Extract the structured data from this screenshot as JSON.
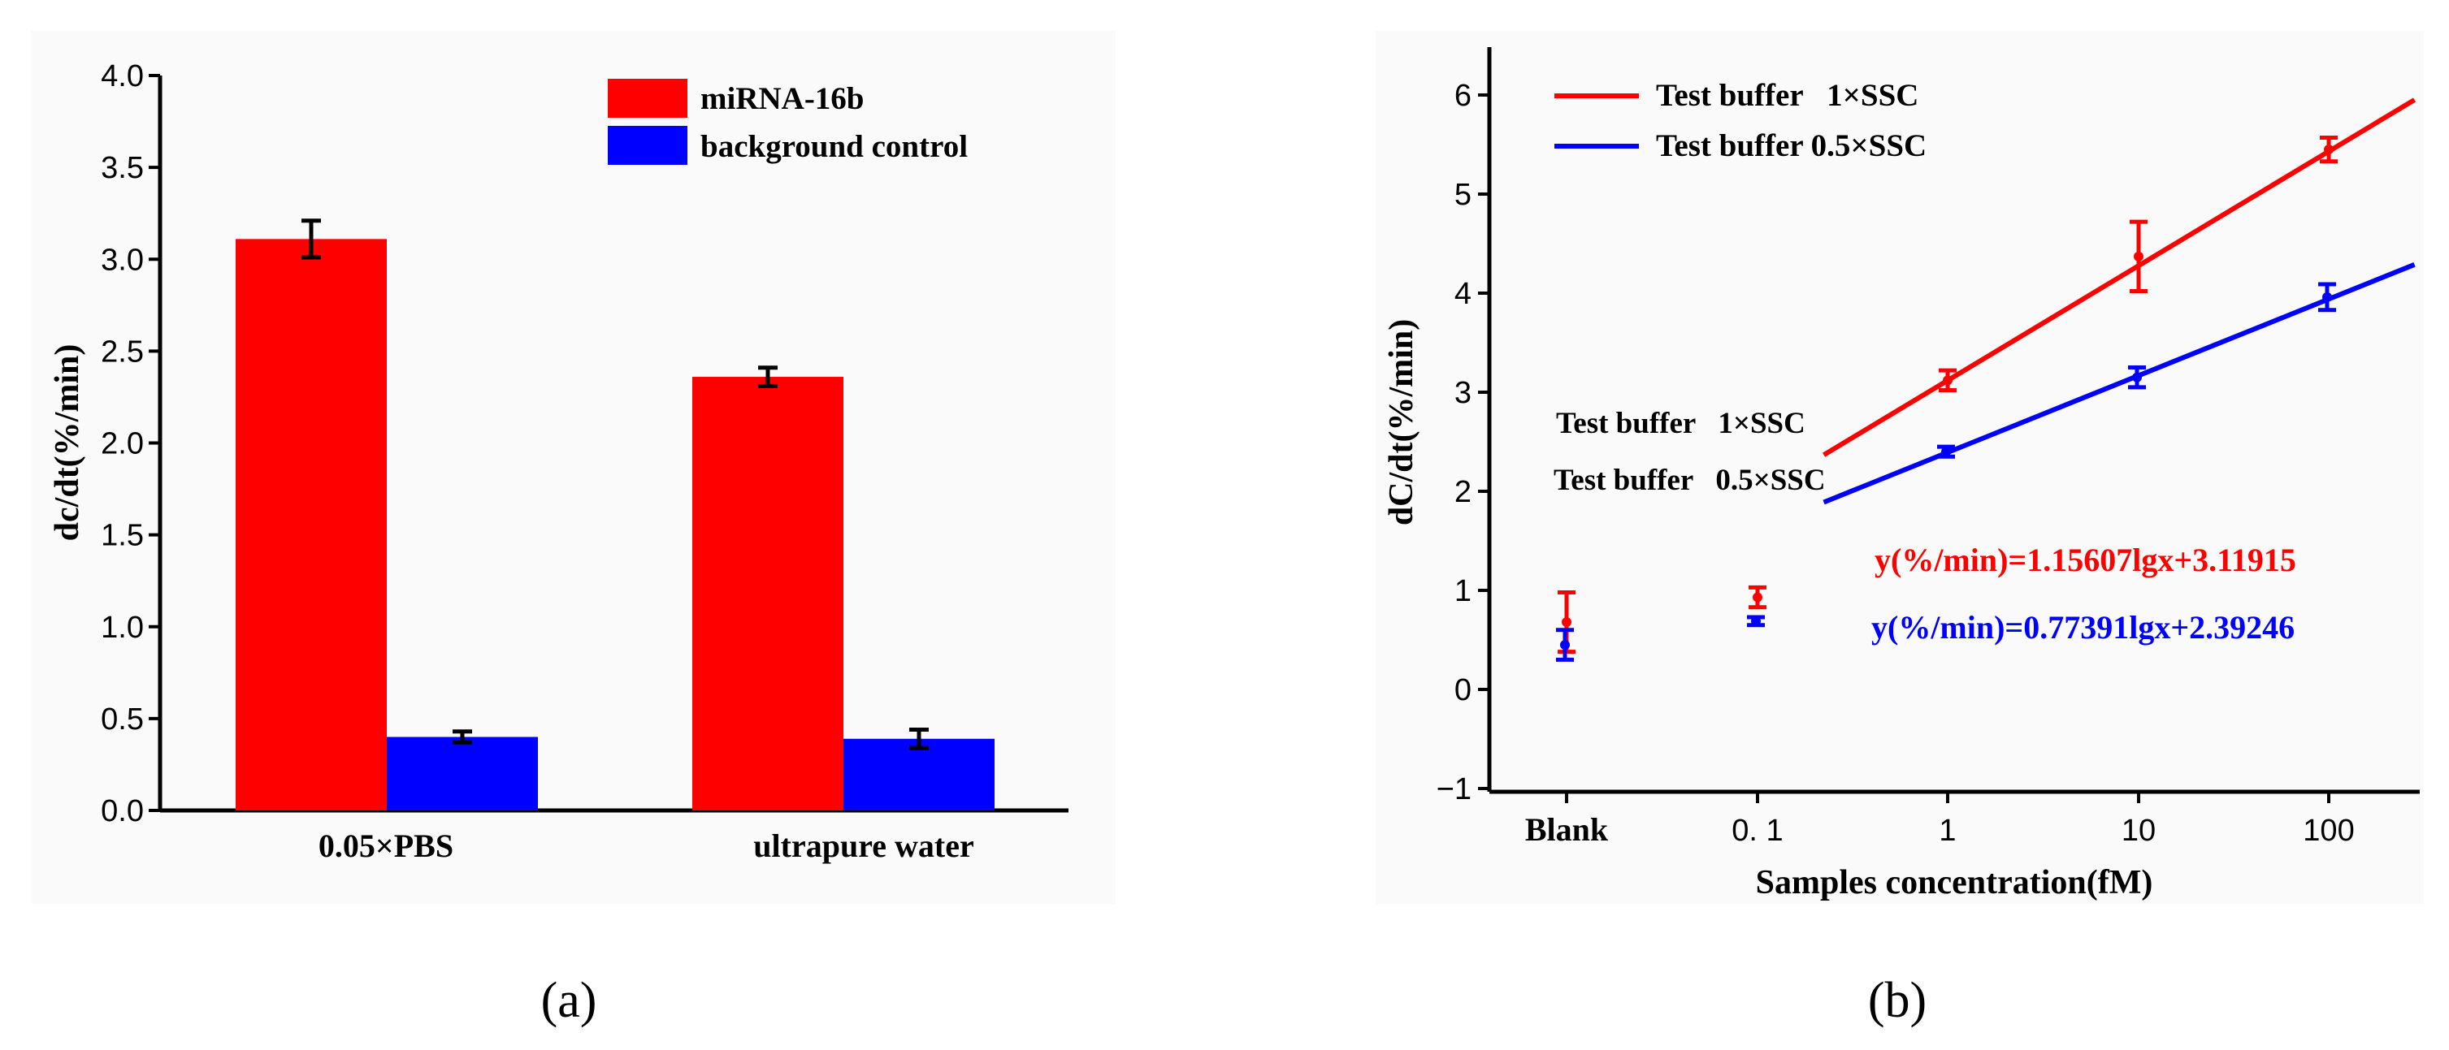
{
  "colors": {
    "red": "#ff0000",
    "blue": "#0000ff",
    "black": "#000000"
  },
  "chart_data": [
    {
      "type": "bar",
      "panel_label": "(a)",
      "ylabel": "dc/dt(%/min)",
      "xlabel": "",
      "ylim": [
        0.0,
        4.0
      ],
      "yticks": [
        "0.0",
        "0.5",
        "1.0",
        "1.5",
        "2.0",
        "2.5",
        "3.0",
        "3.5",
        "4.0"
      ],
      "categories": [
        "0.05×PBS",
        "ultrapure water"
      ],
      "series": [
        {
          "name": "miRNA-16b",
          "color": "#ff0000",
          "values": [
            3.11,
            2.36
          ],
          "errors": [
            0.1,
            0.05
          ]
        },
        {
          "name": "background control",
          "color": "#0000ff",
          "values": [
            0.4,
            0.39
          ],
          "errors": [
            0.03,
            0.05
          ]
        }
      ],
      "legend": "top-right"
    },
    {
      "type": "scatter",
      "panel_label": "(b)",
      "ylabel": "dC/dt(%/min)",
      "xlabel": "Samples concentration(fM)",
      "ylim": [
        -1,
        6.5
      ],
      "yticks": [
        "−1",
        "0",
        "1",
        "2",
        "3",
        "4",
        "5",
        "6"
      ],
      "xticks": [
        "Blank",
        "0. 1",
        "1",
        "10",
        "100"
      ],
      "series": [
        {
          "name": "Test buffer   1×SSC",
          "color": "#ff0000",
          "x": [
            "Blank",
            "0. 1",
            "1",
            "10",
            "100"
          ],
          "y": [
            0.68,
            0.93,
            3.12,
            4.37,
            5.45
          ],
          "errors": [
            0.3,
            0.1,
            0.1,
            0.35,
            0.12
          ]
        },
        {
          "name": "Test buffer 0.5×SSC",
          "color": "#0000ff",
          "x": [
            "Blank",
            "0. 1",
            "1",
            "10",
            "100"
          ],
          "y": [
            0.45,
            0.69,
            2.4,
            3.15,
            3.96
          ],
          "errors": [
            0.15,
            0.04,
            0.05,
            0.1,
            0.13
          ]
        }
      ],
      "fits": [
        {
          "label": "Test buffer   1×SSC",
          "equation": "y(%/min)=1.15607lgx+3.11915",
          "color": "#ff0000",
          "slope": 1.15607,
          "intercept": 3.11915,
          "lgx_range": [
            -0.65,
            2.45
          ]
        },
        {
          "label": "Test buffer   0.5×SSC",
          "equation": "y(%/min)=0.77391lgx+2.39246",
          "color": "#0000ff",
          "slope": 0.77391,
          "intercept": 2.39246,
          "lgx_range": [
            -0.65,
            2.45
          ]
        }
      ],
      "legend": "top-left"
    }
  ]
}
